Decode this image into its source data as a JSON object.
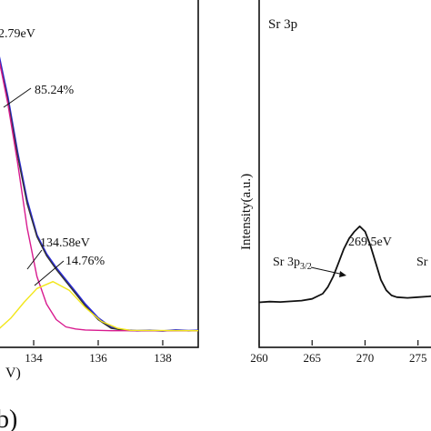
{
  "chart_data": [
    {
      "type": "line",
      "xlabel": "V)",
      "ylabel": "",
      "xlim": [
        132.9,
        139.1
      ],
      "ylim": [
        0,
        100
      ],
      "x_ticks": [
        "134",
        "136",
        "138"
      ],
      "x_tick_values": [
        134,
        136,
        138
      ],
      "annotations": {
        "peak_top": "2.79eV",
        "peak_top_pct": "85.24%",
        "peak_second": "134.58eV",
        "peak_second_pct": "14.76%"
      },
      "panel_letter": "b)",
      "series": [
        {
          "role": "measured",
          "color": "#2a2ad8",
          "x": [
            132.9,
            133.2,
            133.5,
            133.8,
            134.1,
            134.4,
            134.7,
            135.0,
            135.3,
            135.6,
            136.0,
            136.4,
            136.8,
            137.2,
            137.6,
            138.0,
            138.4,
            138.8,
            139.1
          ],
          "y": [
            85,
            72,
            56,
            42,
            32,
            26.5,
            22.5,
            19,
            15.5,
            12,
            8,
            5.3,
            4.5,
            4.3,
            4.4,
            4.2,
            4.5,
            4.3,
            4.4
          ]
        },
        {
          "role": "fit-envelope",
          "color": "#333333",
          "x": [
            132.9,
            133.2,
            133.5,
            133.8,
            134.1,
            134.4,
            134.7,
            135.0,
            135.3,
            135.6,
            136.0,
            136.4,
            136.8,
            137.2,
            138.0,
            139.1
          ],
          "y": [
            84,
            71,
            55,
            41,
            31.5,
            26,
            22,
            18.5,
            15,
            11.5,
            7.5,
            5,
            4.4,
            4.3,
            4.3,
            4.3
          ]
        },
        {
          "role": "component-1",
          "color": "#d81b8f",
          "x": [
            132.9,
            133.2,
            133.5,
            133.8,
            134.1,
            134.4,
            134.7,
            135.0,
            135.3,
            135.6,
            136.0,
            136.4,
            137.0,
            139.1
          ],
          "y": [
            84,
            70,
            53,
            34,
            20,
            12,
            7.5,
            5.4,
            4.8,
            4.5,
            4.4,
            4.3,
            4.3,
            4.3
          ]
        },
        {
          "role": "component-2",
          "color": "#f2e61a",
          "x": [
            132.9,
            133.3,
            133.7,
            134.1,
            134.6,
            135.1,
            135.6,
            136.1,
            136.6,
            137.0,
            139.1
          ],
          "y": [
            4.6,
            8,
            12.5,
            16.5,
            18.5,
            16,
            11,
            7,
            5,
            4.4,
            4.3
          ]
        }
      ]
    },
    {
      "type": "line",
      "title": "Sr 3p",
      "xlabel": "",
      "ylabel": "Intensity(a.u.)",
      "xlim": [
        260,
        277
      ],
      "ylim": [
        0,
        100
      ],
      "x_ticks": [
        "260",
        "265",
        "270",
        "275"
      ],
      "x_tick_values": [
        260,
        265,
        270,
        275
      ],
      "annotations": {
        "peak": "269.5eV",
        "peak_label_main": "Sr 3p",
        "peak_label_sub": "3/2",
        "cut_label": "Sr"
      },
      "series": [
        {
          "role": "measured",
          "color": "#111111",
          "x": [
            260,
            261,
            262,
            263,
            264,
            265,
            266,
            266.5,
            267,
            267.5,
            268,
            268.5,
            269,
            269.5,
            270,
            270.5,
            271,
            271.5,
            272,
            272.5,
            273,
            274,
            275,
            276,
            277
          ],
          "y": [
            12.5,
            12.7,
            12.6,
            12.8,
            13,
            13.5,
            15,
            17,
            20,
            24,
            28,
            31,
            33,
            34.5,
            33,
            29,
            24,
            19,
            16,
            14.5,
            14,
            13.8,
            14,
            14.2,
            14.5
          ]
        }
      ]
    }
  ]
}
